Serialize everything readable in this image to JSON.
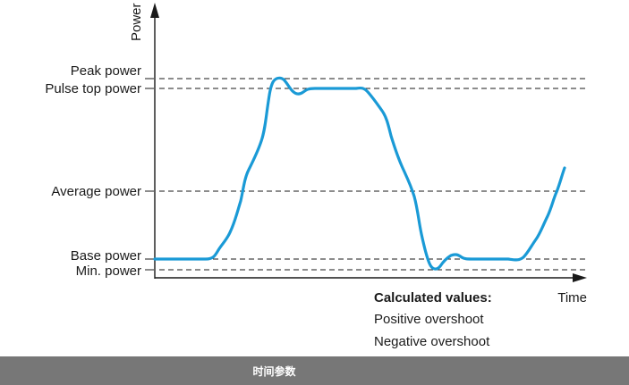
{
  "diagram": {
    "axes": {
      "y_label": "Power",
      "x_label": "Time"
    },
    "levels": [
      {
        "name": "peak",
        "label": "Peak power"
      },
      {
        "name": "pulse-top",
        "label": "Pulse top power"
      },
      {
        "name": "average",
        "label": "Average power"
      },
      {
        "name": "base",
        "label": "Base power"
      },
      {
        "name": "min",
        "label": "Min. power"
      }
    ],
    "calculated": {
      "title": "Calculated values:",
      "items": [
        "Positive overshoot",
        "Negative overshoot"
      ]
    },
    "colors": {
      "waveform": "#1a9ad6",
      "axis": "#1a1a1a",
      "footer_bg": "#777777"
    }
  },
  "footer": {
    "caption": "时间参数"
  }
}
